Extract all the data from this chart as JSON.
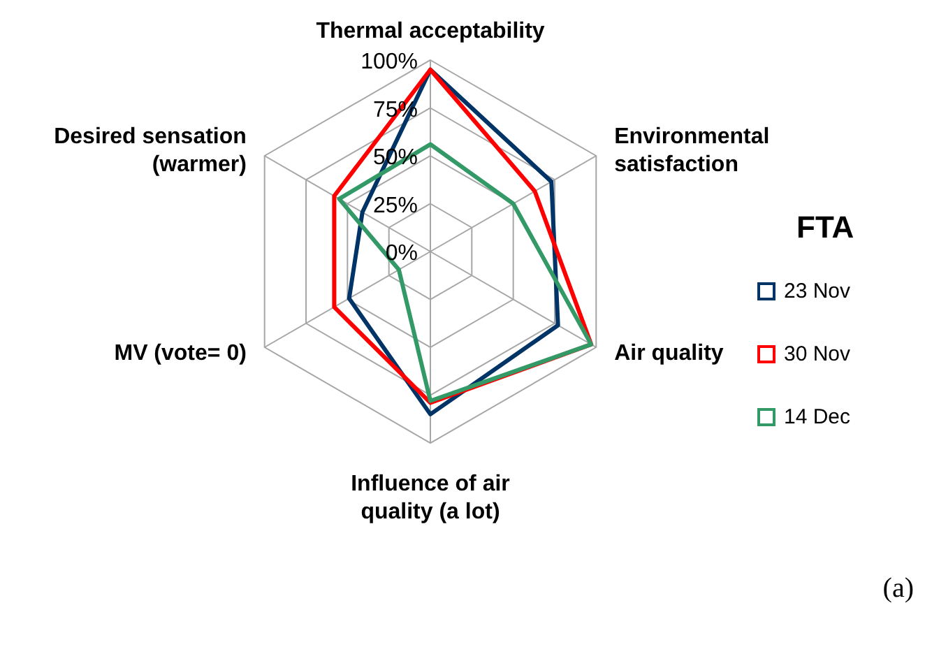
{
  "chart_data": {
    "type": "radar",
    "categories": [
      "Thermal acceptability",
      "Environmental satisfaction",
      "Air quality",
      "Influence of air quality (a lot)",
      "MV (vote= 0)",
      "Desired sensation (warmer)"
    ],
    "series": [
      {
        "name": "23 Nov",
        "color": "#003366",
        "values": [
          95,
          73,
          77,
          85,
          49,
          41
        ]
      },
      {
        "name": "30 Nov",
        "color": "#ff0000",
        "values": [
          95,
          63,
          97,
          79,
          58,
          58
        ]
      },
      {
        "name": "14 Dec",
        "color": "#339966",
        "values": [
          56,
          50,
          97,
          78,
          19,
          55
        ]
      }
    ],
    "ylim": [
      0,
      100
    ],
    "yticks": [
      {
        "value": 0,
        "label": "0%"
      },
      {
        "value": 25,
        "label": "25%"
      },
      {
        "value": 50,
        "label": "50%"
      },
      {
        "value": 75,
        "label": "75%"
      },
      {
        "value": 100,
        "label": "100%"
      }
    ],
    "grid": true,
    "legend": "right",
    "legend_title": "FTA",
    "marker": "none",
    "line_style": "solid",
    "annotations": [
      "(a)"
    ]
  }
}
